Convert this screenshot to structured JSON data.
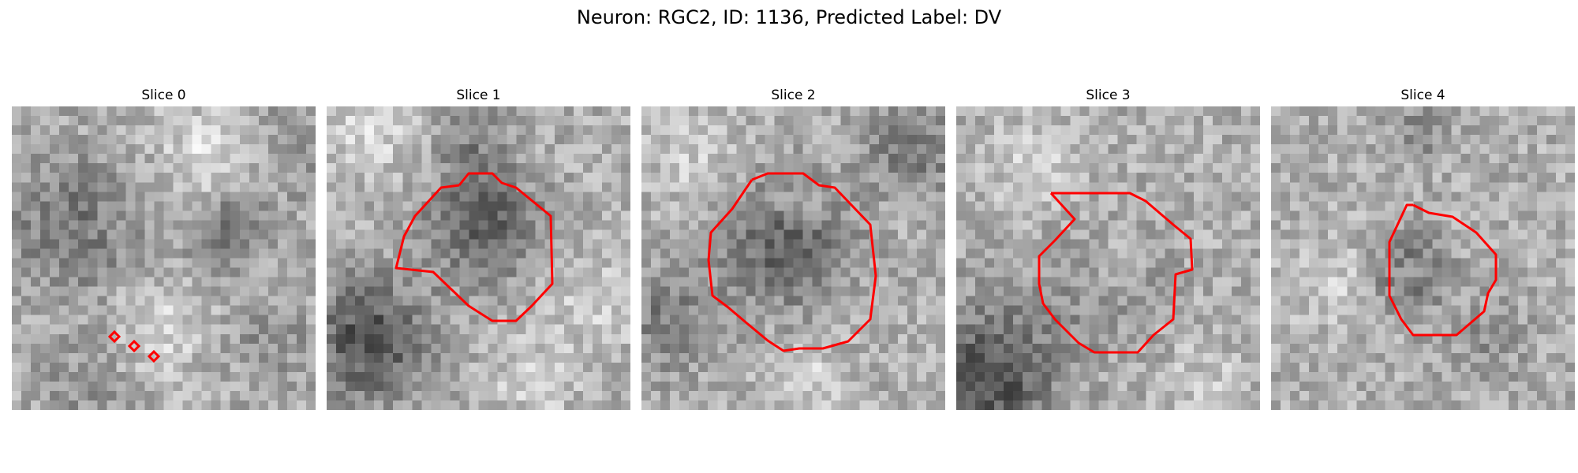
{
  "figure": {
    "title": "Neuron: RGC2, ID: 1136, Predicted Label: DV",
    "colormap": "gray",
    "contour_color": "#ff0000",
    "panels": [
      {
        "title": "Slice 0"
      },
      {
        "title": "Slice 1"
      },
      {
        "title": "Slice 2"
      },
      {
        "title": "Slice 3"
      },
      {
        "title": "Slice 4"
      }
    ]
  }
}
